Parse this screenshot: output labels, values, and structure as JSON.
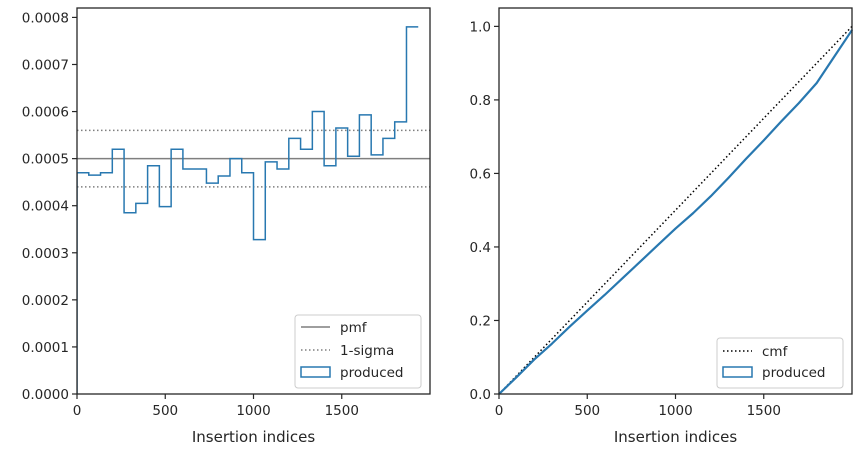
{
  "chart_data": [
    {
      "type": "histogram",
      "xlabel": "Insertion indices",
      "ylabel": "",
      "xlim": [
        0,
        2000
      ],
      "ylim": [
        0,
        0.00082
      ],
      "xticks": [
        "0",
        "500",
        "1000",
        "1500"
      ],
      "yticks": [
        "0.0000",
        "0.0001",
        "0.0002",
        "0.0003",
        "0.0004",
        "0.0005",
        "0.0006",
        "0.0007",
        "0.0008"
      ],
      "bin_width": 66.67,
      "produced": [
        0.00047,
        0.000465,
        0.00047,
        0.00052,
        0.000385,
        0.000405,
        0.000485,
        0.000398,
        0.00052,
        0.000478,
        0.000478,
        0.000448,
        0.000463,
        0.0005,
        0.00047,
        0.000328,
        0.000493,
        0.000478,
        0.000543,
        0.00052,
        0.0006,
        0.000485,
        0.000565,
        0.000505,
        0.000593,
        0.000508,
        0.000543,
        0.000578,
        0.00078
      ],
      "pmf": 0.0005,
      "sigma_upper": 0.00056,
      "sigma_lower": 0.00044,
      "legend": {
        "placement": "lower right",
        "entries": [
          "pmf",
          "1-sigma",
          "produced"
        ]
      }
    },
    {
      "type": "line",
      "xlabel": "Insertion indices",
      "ylabel": "",
      "xlim": [
        0,
        2000
      ],
      "ylim": [
        0,
        1.05
      ],
      "xticks": [
        "0",
        "500",
        "1000",
        "1500"
      ],
      "yticks": [
        "0.0",
        "0.2",
        "0.4",
        "0.6",
        "0.8",
        "1.0"
      ],
      "cmf": {
        "x": [
          0,
          2000
        ],
        "y": [
          0,
          1.0
        ]
      },
      "produced": {
        "x": [
          0,
          100,
          200,
          300,
          400,
          500,
          600,
          700,
          800,
          900,
          1000,
          1100,
          1200,
          1300,
          1400,
          1500,
          1600,
          1700,
          1800,
          1900,
          2000
        ],
        "y": [
          0,
          0.046,
          0.094,
          0.137,
          0.183,
          0.227,
          0.27,
          0.315,
          0.36,
          0.405,
          0.45,
          0.492,
          0.538,
          0.588,
          0.64,
          0.69,
          0.742,
          0.792,
          0.846,
          0.918,
          0.99
        ]
      },
      "legend": {
        "placement": "lower right",
        "entries": [
          "cmf",
          "produced"
        ]
      }
    }
  ],
  "colors": {
    "produced": "#2878b0",
    "pmf": "#7f7f7f",
    "sigma": "#7f7f7f",
    "cmf": "#000000",
    "axis": "#262626"
  }
}
